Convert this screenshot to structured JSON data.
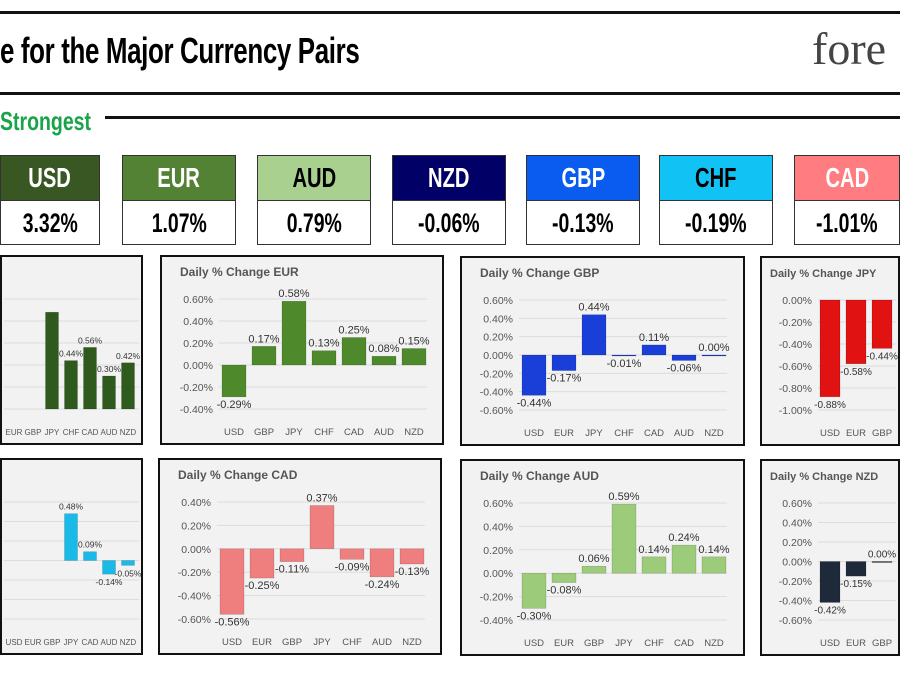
{
  "header": {
    "title": "e for the Major Currency Pairs",
    "logo_text": "fore",
    "ranking_label": "Strongest"
  },
  "ranking": [
    {
      "currency": "USD",
      "change": "3.32%",
      "color": "#385723",
      "text_color": "#ffffff"
    },
    {
      "currency": "EUR",
      "change": "1.07%",
      "color": "#548235",
      "text_color": "#ffffff"
    },
    {
      "currency": "AUD",
      "change": "0.79%",
      "color": "#a9d08e",
      "text_color": "#000000"
    },
    {
      "currency": "NZD",
      "change": "-0.06%",
      "color": "#000066",
      "text_color": "#ffffff"
    },
    {
      "currency": "GBP",
      "change": "-0.13%",
      "color": "#0a5cf0",
      "text_color": "#ffffff"
    },
    {
      "currency": "CHF",
      "change": "-0.19%",
      "color": "#11c3f5",
      "text_color": "#000000"
    },
    {
      "currency": "CAD",
      "change": "-1.01%",
      "color": "#ff7c80",
      "text_color": "#ffffff"
    }
  ],
  "chart_data": [
    {
      "type": "bar",
      "title": "",
      "bar_color": "#2f5a1e",
      "ylim": [
        0,
        1.0
      ],
      "yticks": [],
      "categories": [
        "EUR",
        "GBP",
        "JPY",
        "CHF",
        "CAD",
        "AUD",
        "NZD"
      ],
      "values": [
        null,
        null,
        0.88,
        0.44,
        0.56,
        0.3,
        0.42
      ],
      "show_label": [
        false,
        false,
        false,
        true,
        true,
        true,
        true
      ]
    },
    {
      "type": "bar",
      "title": "Daily % Change EUR",
      "bar_color": "#4e8a2c",
      "ylim": [
        -0.4,
        0.6
      ],
      "yticks": [
        0.6,
        0.4,
        0.2,
        0.0,
        -0.2,
        -0.4
      ],
      "categories": [
        "USD",
        "GBP",
        "JPY",
        "CHF",
        "CAD",
        "AUD",
        "NZD"
      ],
      "values": [
        -0.29,
        0.17,
        0.58,
        0.13,
        0.25,
        0.08,
        0.15
      ]
    },
    {
      "type": "bar",
      "title": "Daily % Change GBP",
      "bar_color": "#1a3fd8",
      "ylim": [
        -0.6,
        0.6
      ],
      "yticks": [
        0.6,
        0.4,
        0.2,
        0.0,
        -0.2,
        -0.4,
        -0.6
      ],
      "categories": [
        "USD",
        "EUR",
        "JPY",
        "CHF",
        "CAD",
        "AUD",
        "NZD"
      ],
      "values": [
        -0.44,
        -0.17,
        0.44,
        -0.01,
        0.11,
        -0.06,
        0.0
      ]
    },
    {
      "type": "bar",
      "title": "Daily % Change JPY",
      "bar_color": "#e01212",
      "ylim": [
        -1.0,
        0.0
      ],
      "yticks": [
        0.0,
        -0.2,
        -0.4,
        -0.6,
        -0.8,
        -1.0
      ],
      "categories": [
        "USD",
        "EUR",
        "GBP"
      ],
      "values": [
        -0.88,
        -0.58,
        -0.44
      ]
    },
    {
      "type": "bar",
      "title": "",
      "bar_color": "#19b9e8",
      "ylim": [
        -0.6,
        0.6
      ],
      "yticks": [],
      "categories": [
        "USD",
        "EUR",
        "GBP",
        "JPY",
        "CAD",
        "AUD",
        "NZD"
      ],
      "values": [
        null,
        null,
        null,
        0.48,
        0.09,
        -0.14,
        -0.05
      ]
    },
    {
      "type": "bar",
      "title": "Daily % Change CAD",
      "bar_color": "#ef7f7f",
      "ylim": [
        -0.6,
        0.4
      ],
      "yticks": [
        0.4,
        0.2,
        0.0,
        -0.2,
        -0.4,
        -0.6
      ],
      "categories": [
        "USD",
        "EUR",
        "GBP",
        "JPY",
        "CHF",
        "AUD",
        "NZD"
      ],
      "values": [
        -0.56,
        -0.25,
        -0.11,
        0.37,
        -0.09,
        -0.24,
        -0.13
      ]
    },
    {
      "type": "bar",
      "title": "Daily % Change AUD",
      "bar_color": "#9ccb7a",
      "ylim": [
        -0.4,
        0.6
      ],
      "yticks": [
        0.6,
        0.4,
        0.2,
        0.0,
        -0.2,
        -0.4
      ],
      "categories": [
        "USD",
        "EUR",
        "GBP",
        "JPY",
        "CHF",
        "CAD",
        "NZD"
      ],
      "values": [
        -0.3,
        -0.08,
        0.06,
        0.59,
        0.14,
        0.24,
        0.14
      ]
    },
    {
      "type": "bar",
      "title": "Daily % Change NZD",
      "bar_color": "#1e2a3a",
      "ylim": [
        -0.6,
        0.6
      ],
      "yticks": [
        0.6,
        0.4,
        0.2,
        0.0,
        -0.2,
        -0.4,
        -0.6
      ],
      "categories": [
        "USD",
        "EUR",
        "GBP"
      ],
      "values": [
        -0.42,
        -0.15,
        0.0
      ]
    }
  ]
}
